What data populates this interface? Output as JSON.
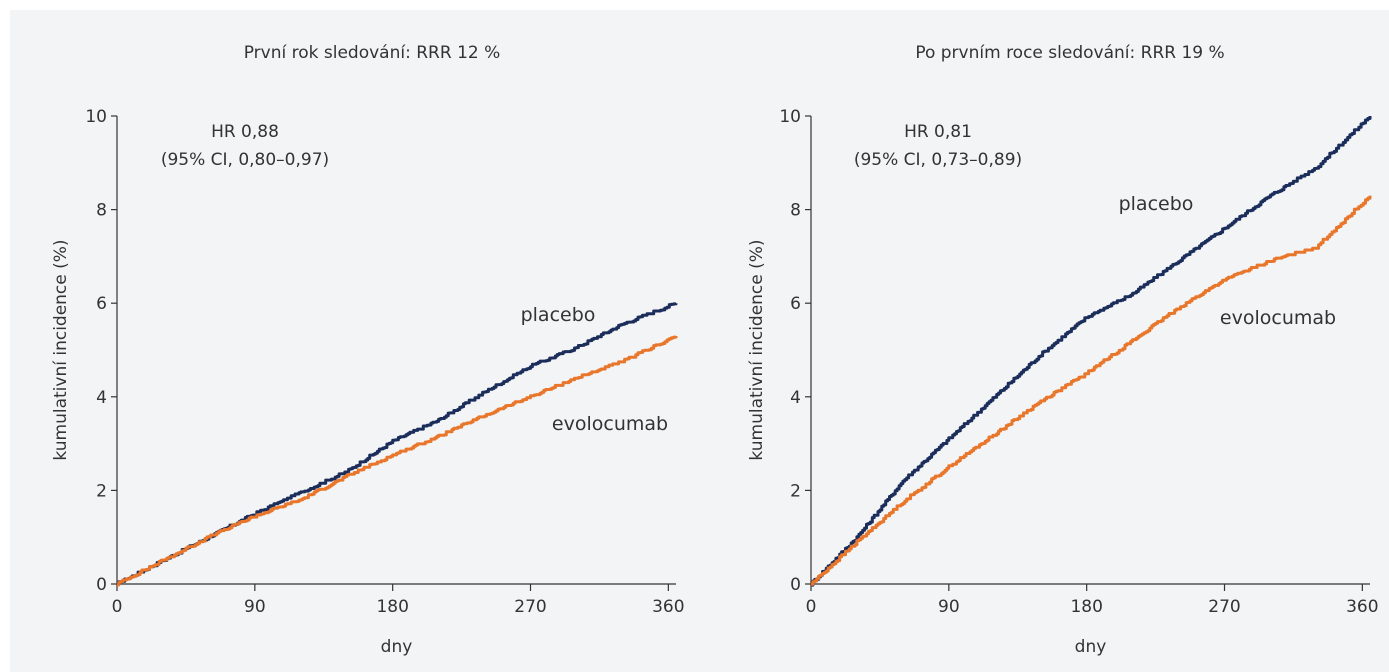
{
  "colors": {
    "background": "#f3f4f6",
    "placebo": "#1b2d5a",
    "evolocumab": "#e8762b",
    "axis": "#333333"
  },
  "chart_data": [
    {
      "type": "line",
      "title": "První rok sledování: RRR 12 %",
      "xlabel": "dny",
      "ylabel": "kumulativní incidence (%)",
      "xlim": [
        0,
        365
      ],
      "ylim": [
        0,
        10
      ],
      "xticks": [
        0,
        90,
        180,
        270,
        360
      ],
      "yticks": [
        0,
        2,
        4,
        6,
        8,
        10
      ],
      "x_tick_labels": [
        "0",
        "90",
        "180",
        "270",
        "360"
      ],
      "y_tick_labels": [
        "0",
        "2",
        "4",
        "6",
        "8",
        "10"
      ],
      "annotation": [
        "HR 0,88",
        "(95% CI, 0,80–0,97)"
      ],
      "series": [
        {
          "name": "placebo",
          "x": [
            0,
            30,
            60,
            90,
            120,
            150,
            180,
            210,
            240,
            270,
            300,
            330,
            365
          ],
          "y": [
            0,
            0.5,
            1.0,
            1.5,
            1.95,
            2.4,
            3.05,
            3.5,
            4.1,
            4.65,
            5.05,
            5.55,
            6.0
          ]
        },
        {
          "name": "evolocumab",
          "x": [
            0,
            30,
            60,
            90,
            120,
            150,
            180,
            210,
            240,
            270,
            300,
            330,
            365
          ],
          "y": [
            0,
            0.5,
            1.0,
            1.45,
            1.8,
            2.3,
            2.75,
            3.15,
            3.6,
            4.0,
            4.4,
            4.75,
            5.3
          ]
        }
      ]
    },
    {
      "type": "line",
      "title": "Po prvním roce sledování: RRR 19 %",
      "xlabel": "dny",
      "ylabel": "kumulativní incidence (%)",
      "xlim": [
        0,
        365
      ],
      "ylim": [
        0,
        10
      ],
      "xticks": [
        0,
        90,
        180,
        270,
        360
      ],
      "yticks": [
        0,
        2,
        4,
        6,
        8,
        10
      ],
      "x_tick_labels": [
        "0",
        "90",
        "180",
        "270",
        "360"
      ],
      "y_tick_labels": [
        "0",
        "2",
        "4",
        "6",
        "8",
        "10"
      ],
      "annotation": [
        "HR 0,81",
        "(95% CI, 0,73–0,89)"
      ],
      "series": [
        {
          "name": "placebo",
          "x": [
            0,
            30,
            60,
            90,
            120,
            150,
            180,
            210,
            240,
            270,
            300,
            330,
            365
          ],
          "y": [
            0,
            1.0,
            2.2,
            3.1,
            4.0,
            4.9,
            5.7,
            6.2,
            6.9,
            7.6,
            8.3,
            8.9,
            10.0
          ]
        },
        {
          "name": "evolocumab",
          "x": [
            0,
            30,
            60,
            90,
            120,
            150,
            180,
            210,
            240,
            270,
            300,
            330,
            365
          ],
          "y": [
            0,
            0.9,
            1.75,
            2.5,
            3.2,
            3.9,
            4.5,
            5.2,
            5.9,
            6.5,
            6.9,
            7.2,
            8.3
          ]
        }
      ]
    }
  ]
}
